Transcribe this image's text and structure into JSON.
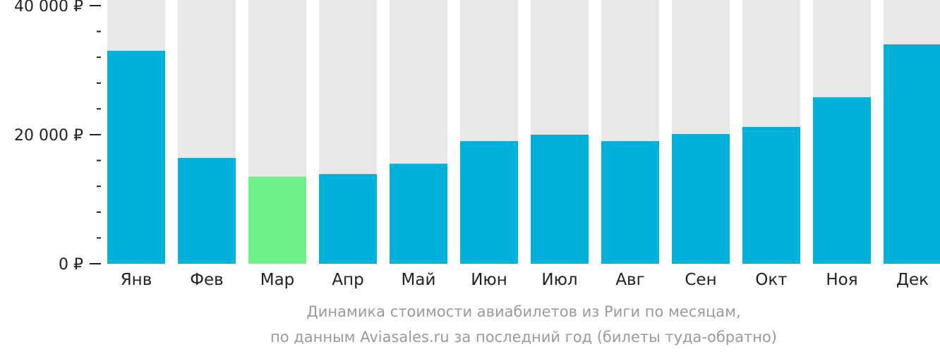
{
  "chart_data": {
    "type": "bar",
    "categories": [
      "Янв",
      "Фев",
      "Мар",
      "Апр",
      "Май",
      "Июн",
      "Июл",
      "Авг",
      "Сен",
      "Окт",
      "Ноя",
      "Дек"
    ],
    "values": [
      33000,
      16400,
      13500,
      13900,
      15500,
      19000,
      20000,
      19000,
      20100,
      21200,
      25800,
      34000
    ],
    "highlight_index": 2,
    "ylim": [
      0,
      40000
    ],
    "yticks": [
      {
        "value": 0,
        "label": "0 ₽"
      },
      {
        "value": 20000,
        "label": "20 000 ₽"
      },
      {
        "value": 40000,
        "label": "40 000 ₽"
      }
    ],
    "minor_tick_step": 4000,
    "colors": {
      "bar": "#00b1db",
      "highlight": "#6cf288",
      "track": "#e8e8e8",
      "axis": "#222222",
      "tick_label": "#222222",
      "caption": "#9a9a9a"
    },
    "caption": [
      "Динамика стоимости авиабилетов из Риги по месяцам,",
      "по данным Aviasales.ru за последний год (билеты туда-обратно)"
    ]
  }
}
